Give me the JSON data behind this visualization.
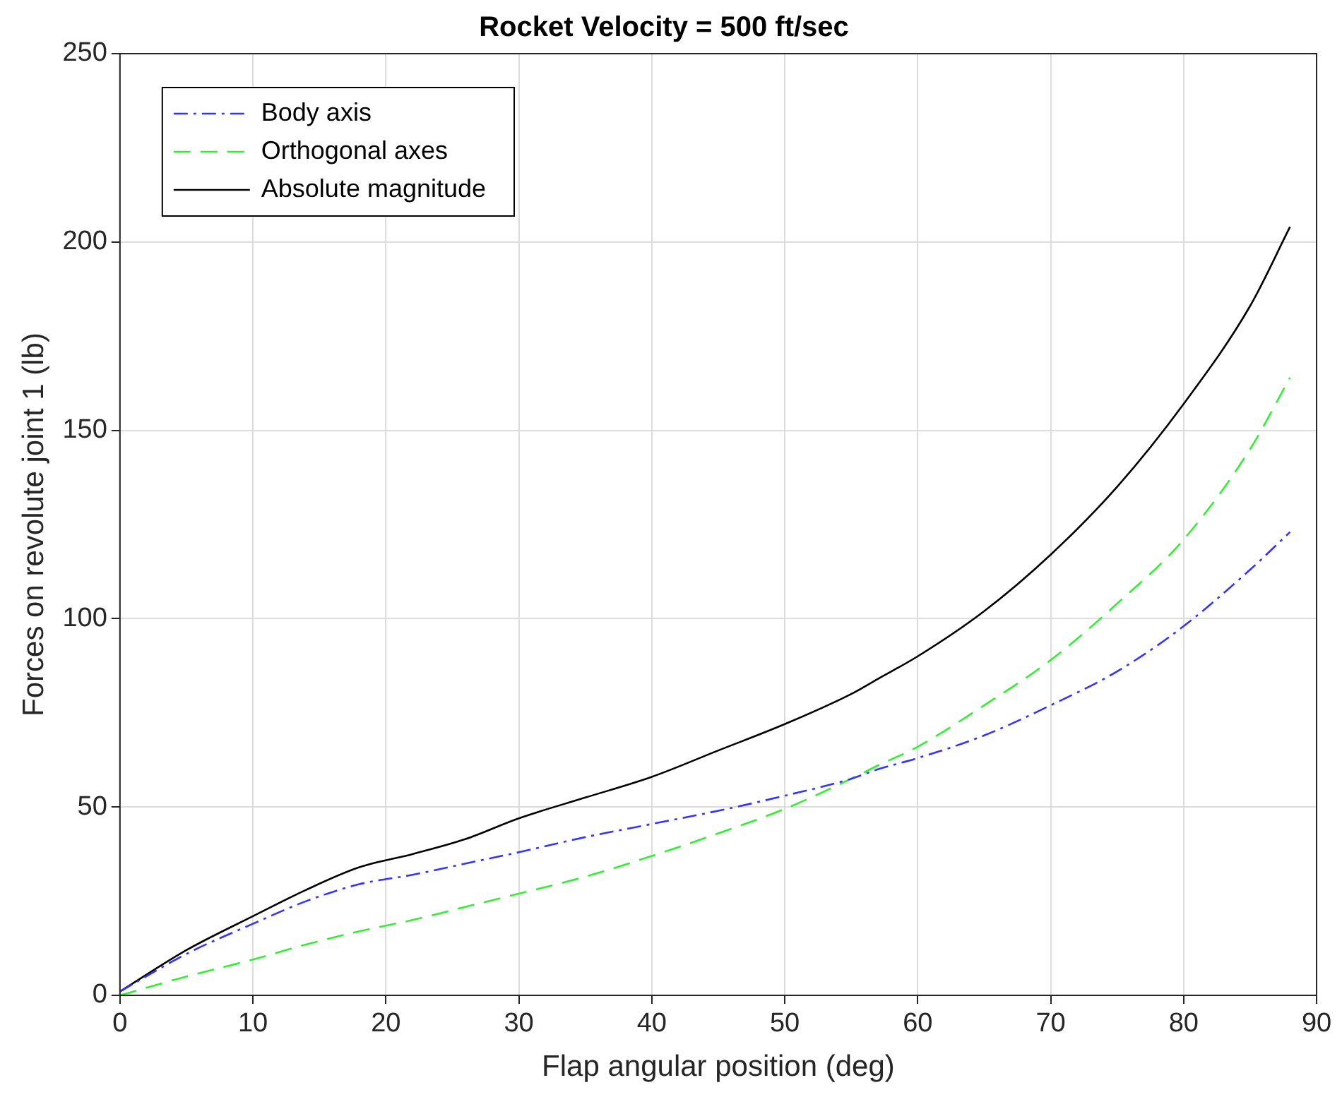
{
  "chart_data": {
    "type": "line",
    "title": "Rocket Velocity = 500 ft/sec",
    "xlabel": "Flap angular position (deg)",
    "ylabel": "Forces on revolute joint 1 (lb)",
    "x": [
      0,
      5,
      10,
      14,
      18,
      22,
      26,
      30,
      35,
      40,
      45,
      50,
      55,
      57,
      60,
      65,
      70,
      75,
      80,
      85,
      88
    ],
    "series": [
      {
        "name": "Body axis",
        "color": "#3333ff",
        "line_style": "dashdot",
        "values": [
          1,
          11,
          19,
          25,
          29.5,
          32,
          35,
          38,
          42,
          45.5,
          49,
          53,
          57.5,
          60,
          63,
          69,
          77,
          86,
          98,
          113,
          123
        ]
      },
      {
        "name": "Orthogonal axes",
        "color": "#33ee33",
        "line_style": "dashed",
        "values": [
          0,
          5,
          9.5,
          13.5,
          17,
          20,
          23.5,
          27,
          31.5,
          37,
          43,
          49.5,
          57.5,
          61,
          66,
          77,
          89,
          104,
          121,
          145,
          164
        ]
      },
      {
        "name": "Absolute magnitude",
        "color": "#000000",
        "line_style": "solid",
        "values": [
          1,
          12,
          21,
          28,
          34,
          37.5,
          41.5,
          47,
          52.5,
          58,
          65,
          72,
          80,
          84,
          90,
          102,
          117,
          135,
          157,
          183,
          204
        ]
      }
    ],
    "xlim": [
      0,
      90
    ],
    "xticks": [
      0,
      10,
      20,
      30,
      40,
      50,
      60,
      70,
      80,
      90
    ],
    "ylim": [
      0,
      250
    ],
    "yticks": [
      0,
      50,
      100,
      150,
      200,
      250
    ],
    "grid": true,
    "legend": "top left",
    "marker": "none"
  }
}
